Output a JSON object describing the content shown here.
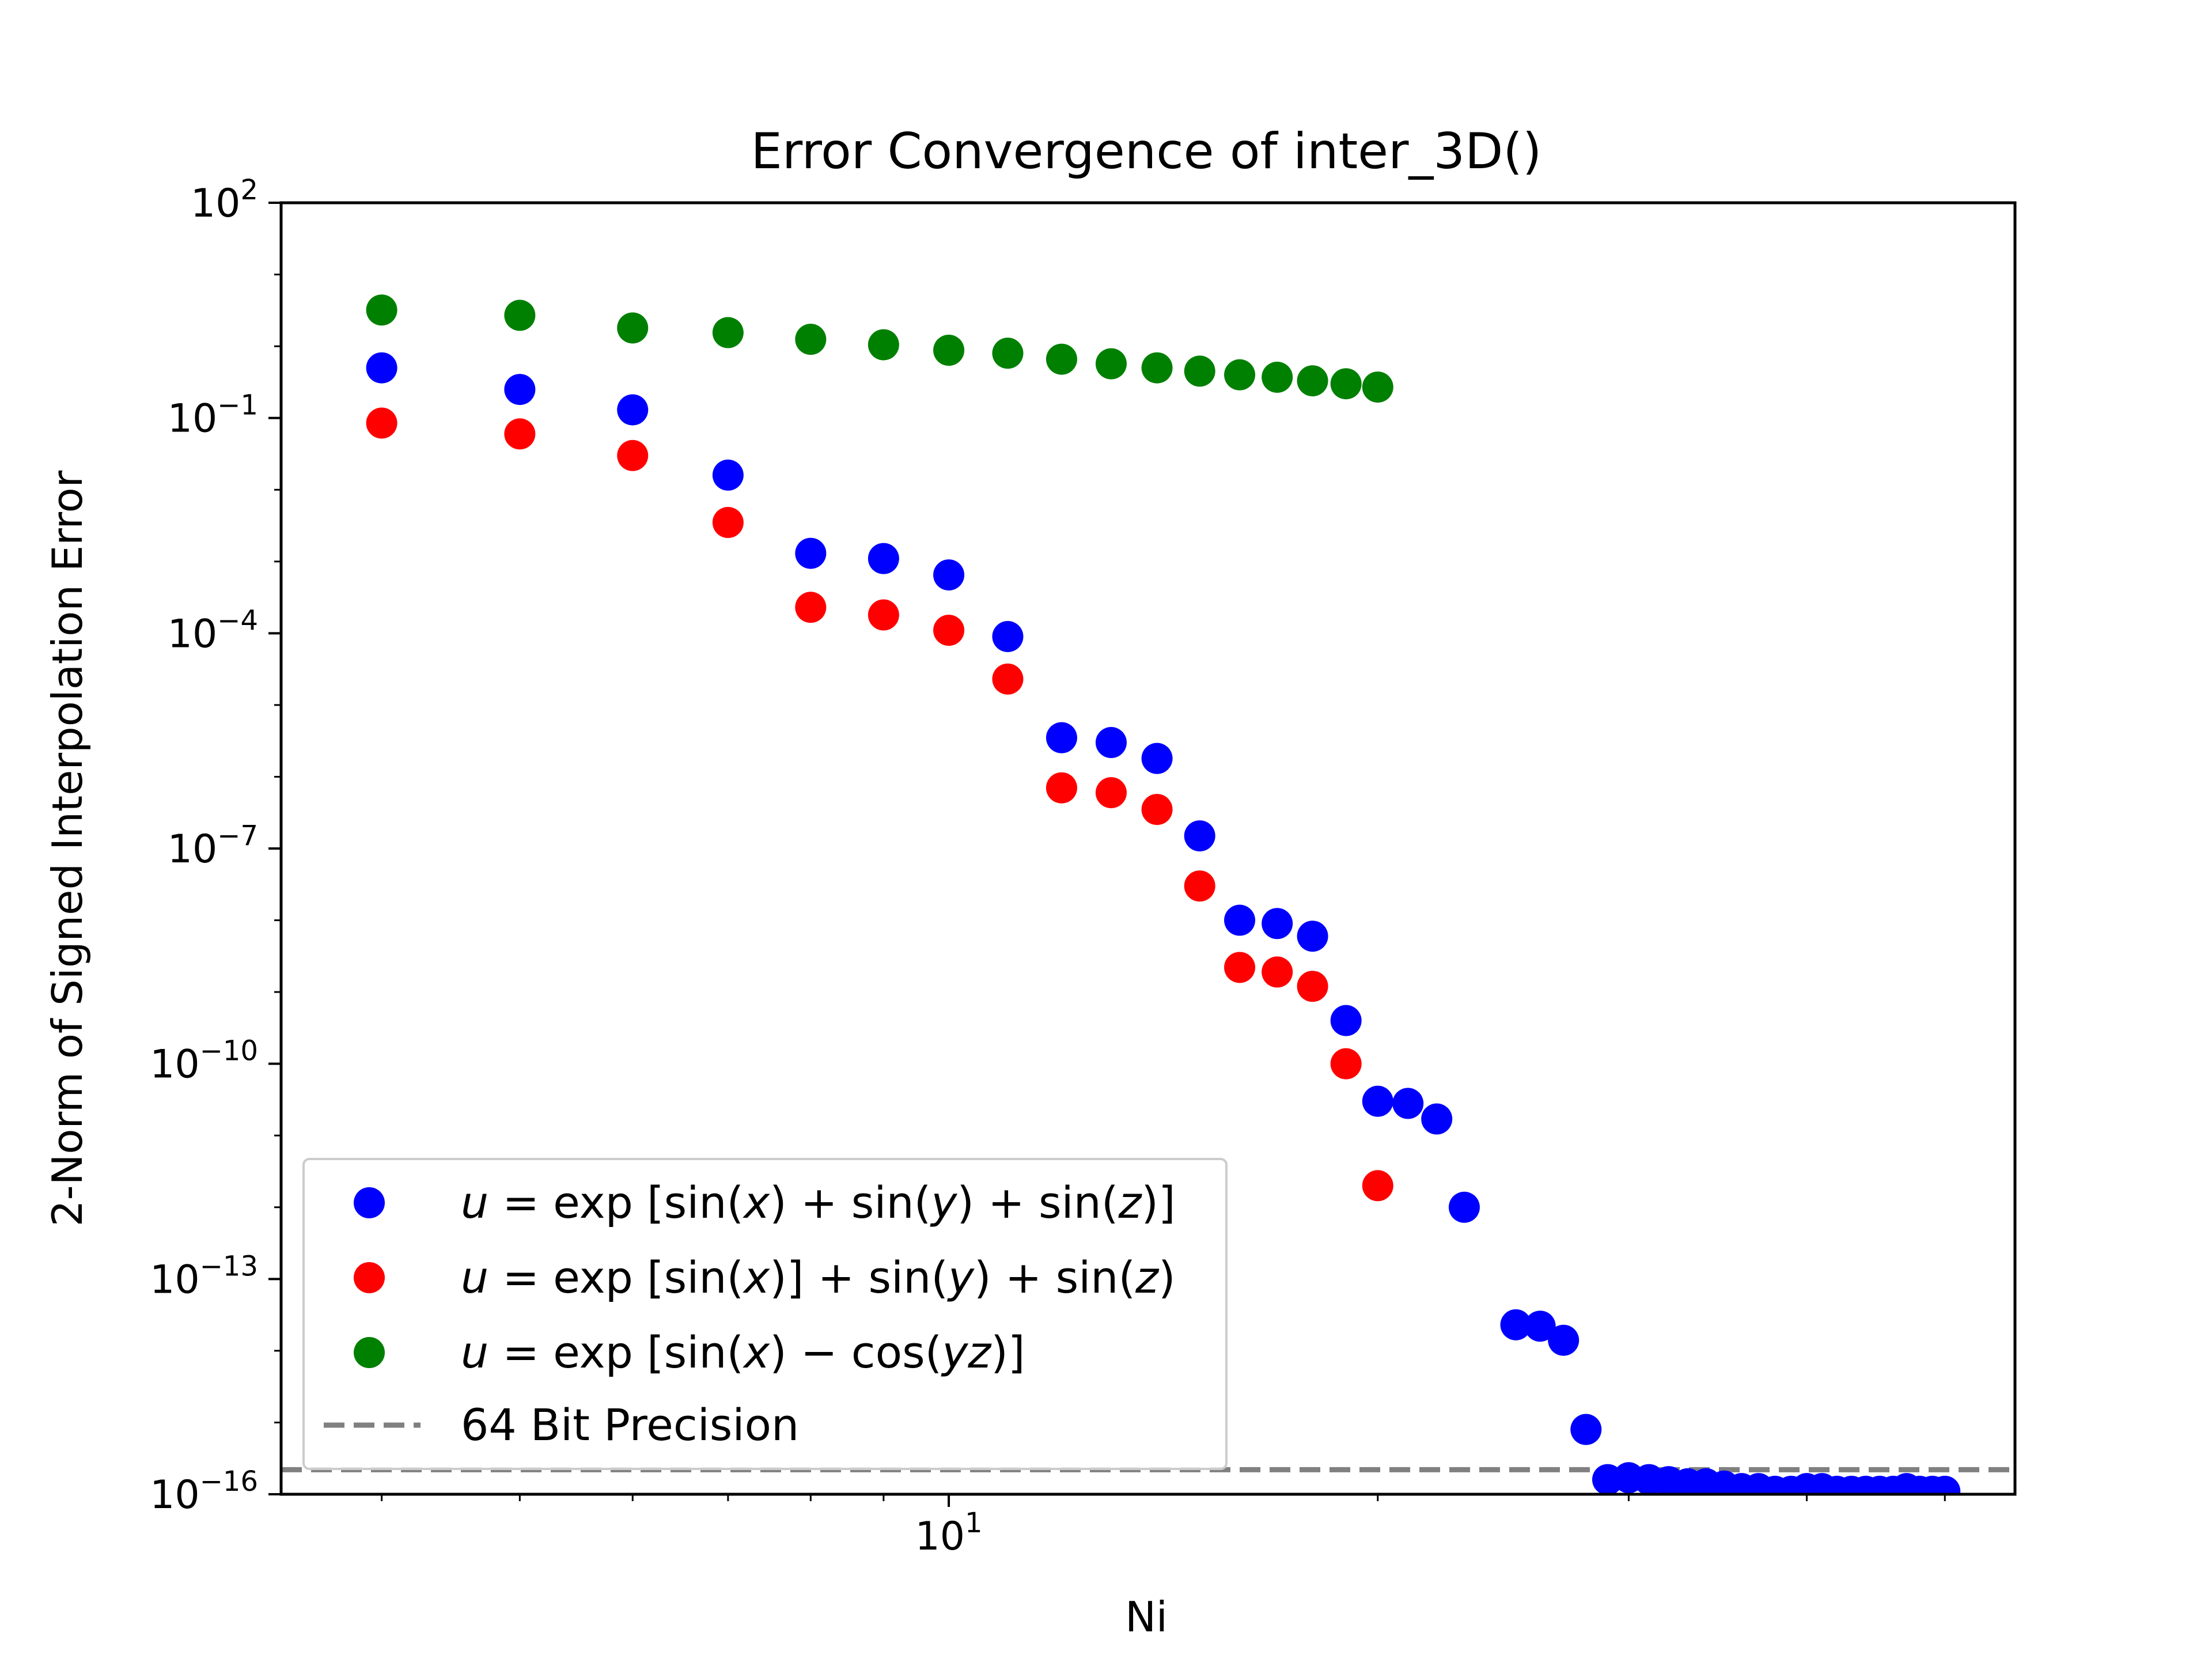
{
  "chart_data": {
    "type": "scatter",
    "title": "Error Convergence of inter_3D()",
    "xlabel": "Ni",
    "ylabel": "2-Norm of Signed Interpolation Error",
    "xscale": "log",
    "yscale": "log",
    "xlim": [
      3.4,
      56
    ],
    "ylim": [
      1e-16,
      100
    ],
    "x_ticks": [
      {
        "value": 10,
        "base": "10",
        "exp": "1"
      }
    ],
    "y_ticks": [
      {
        "value": 100,
        "base": "10",
        "exp": "2"
      },
      {
        "value": 0.1,
        "base": "10",
        "exp": "−1"
      },
      {
        "value": 0.0001,
        "base": "10",
        "exp": "−4"
      },
      {
        "value": 1e-07,
        "base": "10",
        "exp": "−7"
      },
      {
        "value": 1e-10,
        "base": "10",
        "exp": "−10"
      },
      {
        "value": 1e-13,
        "base": "10",
        "exp": "−13"
      },
      {
        "value": 1e-16,
        "base": "10",
        "exp": "−16"
      }
    ],
    "grid": false,
    "legend_position": "lower-left",
    "series": [
      {
        "name": "u = exp [sin(x) + sin(y) + sin(z)]",
        "legend_parts": [
          {
            "t": "u",
            "i": true
          },
          {
            "t": " = exp [sin(",
            "i": false
          },
          {
            "t": "x",
            "i": true
          },
          {
            "t": ") + sin(",
            "i": false
          },
          {
            "t": "y",
            "i": true
          },
          {
            "t": ") + sin(",
            "i": false
          },
          {
            "t": "z",
            "i": true
          },
          {
            "t": ")]",
            "i": false
          }
        ],
        "color": "#0000ff",
        "points": [
          [
            4,
            0.5
          ],
          [
            5,
            0.25
          ],
          [
            6,
            0.13
          ],
          [
            7,
            0.016
          ],
          [
            8,
            0.0013
          ],
          [
            9,
            0.0011
          ],
          [
            10,
            0.00065
          ],
          [
            11,
            9e-05
          ],
          [
            12,
            3.5e-06
          ],
          [
            13,
            3e-06
          ],
          [
            14,
            1.8e-06
          ],
          [
            15,
            1.5e-07
          ],
          [
            16,
            1e-08
          ],
          [
            17,
            9e-09
          ],
          [
            18,
            6e-09
          ],
          [
            19,
            4e-10
          ],
          [
            20,
            3e-11
          ],
          [
            21,
            2.8e-11
          ],
          [
            22,
            1.7e-11
          ],
          [
            23,
            1e-12
          ],
          [
            25,
            2.3e-14
          ],
          [
            26,
            2.2e-14
          ],
          [
            27,
            1.4e-14
          ],
          [
            28,
            8e-16
          ],
          [
            29,
            1.6e-16
          ],
          [
            30,
            1.7e-16
          ],
          [
            31,
            1.6e-16
          ],
          [
            32,
            1.5e-16
          ],
          [
            33,
            1.4e-16
          ],
          [
            34,
            1.4e-16
          ],
          [
            35,
            1.3e-16
          ],
          [
            36,
            1.2e-16
          ],
          [
            37,
            1.2e-16
          ],
          [
            38,
            1.1e-16
          ],
          [
            39,
            1.1e-16
          ],
          [
            40,
            1.2e-16
          ],
          [
            41,
            1.2e-16
          ],
          [
            42,
            1.1e-16
          ],
          [
            43,
            1.1e-16
          ],
          [
            44,
            1.1e-16
          ],
          [
            45,
            1.1e-16
          ],
          [
            46,
            1.1e-16
          ],
          [
            47,
            1.2e-16
          ],
          [
            48,
            1.1e-16
          ],
          [
            49,
            1.1e-16
          ],
          [
            50,
            1.1e-16
          ]
        ]
      },
      {
        "name": "u = exp [sin(x)] + sin(y) + sin(z)",
        "legend_parts": [
          {
            "t": "u",
            "i": true
          },
          {
            "t": " = exp [sin(",
            "i": false
          },
          {
            "t": "x",
            "i": true
          },
          {
            "t": ")] + sin(",
            "i": false
          },
          {
            "t": "y",
            "i": true
          },
          {
            "t": ") + sin(",
            "i": false
          },
          {
            "t": "z",
            "i": true
          },
          {
            "t": ")",
            "i": false
          }
        ],
        "color": "#ff0000",
        "points": [
          [
            4,
            0.085
          ],
          [
            5,
            0.06
          ],
          [
            6,
            0.03
          ],
          [
            7,
            0.0035
          ],
          [
            8,
            0.00023
          ],
          [
            9,
            0.00018
          ],
          [
            10,
            0.00011
          ],
          [
            11,
            2.3e-05
          ],
          [
            12,
            7e-07
          ],
          [
            13,
            6e-07
          ],
          [
            14,
            3.5e-07
          ],
          [
            15,
            3e-08
          ],
          [
            16,
            2.2e-09
          ],
          [
            17,
            1.9e-09
          ],
          [
            18,
            1.2e-09
          ],
          [
            19,
            1e-10
          ],
          [
            20,
            2e-12
          ]
        ]
      },
      {
        "name": "u = exp [sin(x) − cos(yz)]",
        "legend_parts": [
          {
            "t": "u",
            "i": true
          },
          {
            "t": " = exp [sin(",
            "i": false
          },
          {
            "t": "x",
            "i": true
          },
          {
            "t": ") − cos(",
            "i": false
          },
          {
            "t": "yz",
            "i": true
          },
          {
            "t": ")]",
            "i": false
          }
        ],
        "color": "#008000",
        "points": [
          [
            4,
            3.2
          ],
          [
            5,
            2.7
          ],
          [
            6,
            1.8
          ],
          [
            7,
            1.55
          ],
          [
            8,
            1.25
          ],
          [
            9,
            1.05
          ],
          [
            10,
            0.88
          ],
          [
            11,
            0.8
          ],
          [
            12,
            0.66
          ],
          [
            13,
            0.57
          ],
          [
            14,
            0.5
          ],
          [
            15,
            0.45
          ],
          [
            16,
            0.4
          ],
          [
            17,
            0.37
          ],
          [
            18,
            0.33
          ],
          [
            19,
            0.3
          ],
          [
            20,
            0.27
          ]
        ]
      }
    ],
    "reference_line": {
      "name": "64 Bit Precision",
      "y": 2.2e-16,
      "style": "dashed",
      "color": "#808080"
    }
  }
}
